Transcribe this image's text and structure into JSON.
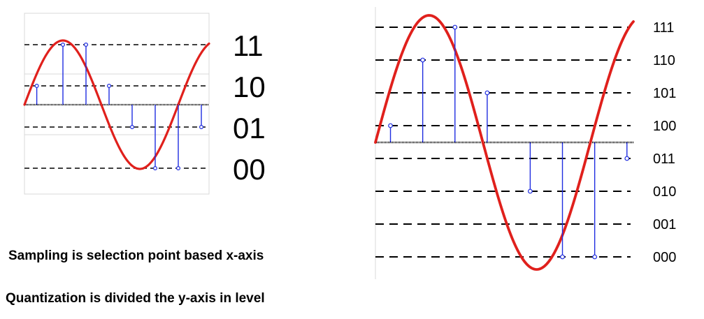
{
  "diagram_left": {
    "level_labels": [
      "11",
      "10",
      "01",
      "00"
    ],
    "samples": [
      {
        "phase": 0.08,
        "level": "10"
      },
      {
        "phase": 0.25,
        "level": "11"
      },
      {
        "phase": 0.4,
        "level": "11"
      },
      {
        "phase": 0.55,
        "level": "10"
      },
      {
        "phase": 0.7,
        "level": "01"
      },
      {
        "phase": 0.85,
        "level": "00"
      },
      {
        "phase": 1.0,
        "level": "00"
      },
      {
        "phase": 1.15,
        "level": "01"
      }
    ]
  },
  "diagram_right": {
    "level_labels": [
      "111",
      "110",
      "101",
      "100",
      "011",
      "010",
      "001",
      "000"
    ],
    "samples": [
      {
        "phase": 0.07,
        "level": "100"
      },
      {
        "phase": 0.22,
        "level": "110"
      },
      {
        "phase": 0.37,
        "level": "111"
      },
      {
        "phase": 0.52,
        "level": "101"
      },
      {
        "phase": 0.72,
        "level": "010"
      },
      {
        "phase": 0.87,
        "level": "000"
      },
      {
        "phase": 1.02,
        "level": "000"
      },
      {
        "phase": 1.17,
        "level": "011"
      }
    ]
  },
  "captions": {
    "sampling": "Sampling is selection point based x-axis",
    "quantization": "Quantization is divided the y-axis in level"
  },
  "colors": {
    "signal": "#e0201c",
    "sample": "#1f2de0",
    "dashes": "#000000",
    "grid": "#d9d9d9"
  }
}
